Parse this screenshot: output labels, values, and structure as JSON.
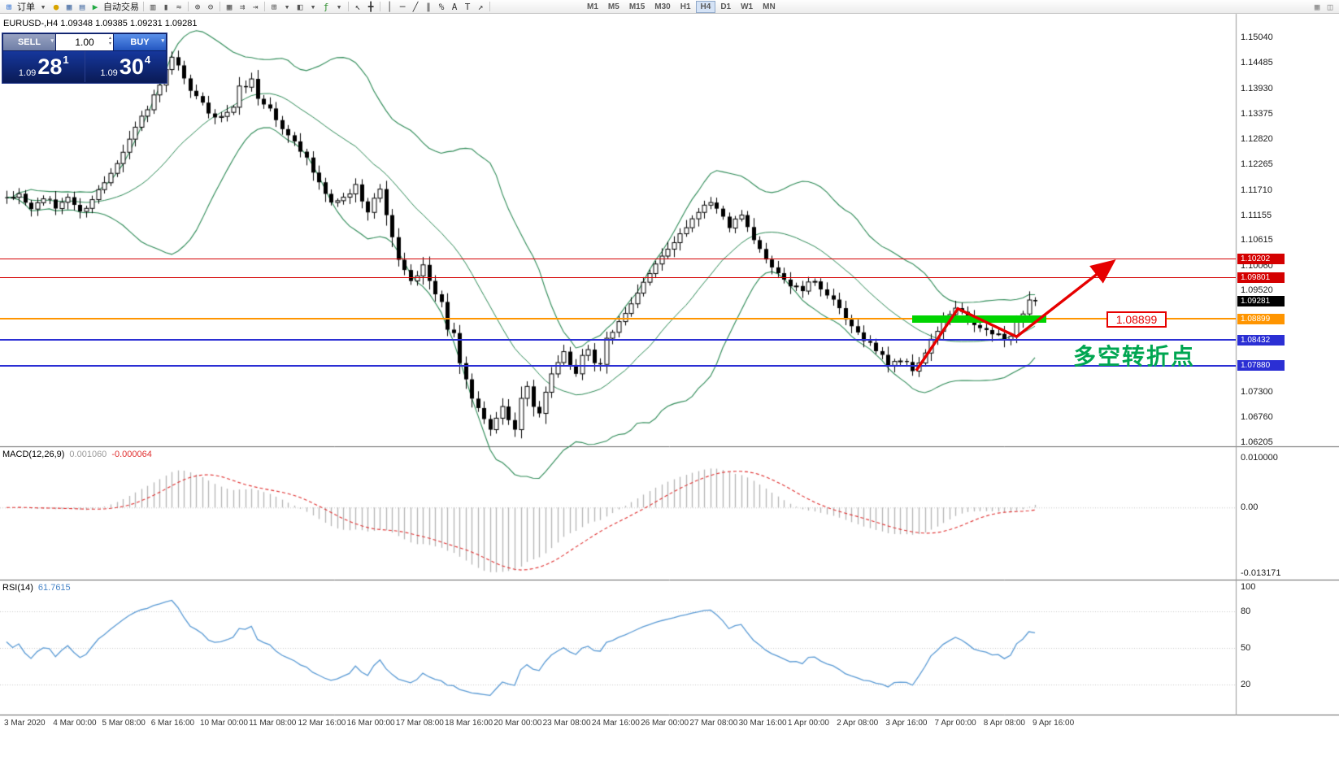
{
  "toolbar": {
    "items": [
      {
        "name": "new-order-icon",
        "glyph": "⊞",
        "color": "#2f6fd1"
      },
      {
        "name": "new-order-label",
        "text": "订单"
      },
      {
        "name": "new-order-dropdown-icon",
        "glyph": "▾",
        "color": "#555555"
      },
      {
        "name": "deposit-icon",
        "glyph": "●",
        "color": "#d8a400"
      },
      {
        "name": "market-watch-icon",
        "glyph": "▦",
        "color": "#4a6fa5"
      },
      {
        "name": "data-window-icon",
        "glyph": "▤",
        "color": "#4a6fa5"
      },
      {
        "name": "autotrade-play-icon",
        "glyph": "▶",
        "color": "#22aa44"
      },
      {
        "name": "autotrade-label",
        "text": "自动交易"
      },
      {
        "sep": true
      },
      {
        "name": "bar-chart-icon",
        "glyph": "▥",
        "color": "#555555"
      },
      {
        "name": "candlestick-chart-icon",
        "glyph": "▮",
        "color": "#555555"
      },
      {
        "name": "line-chart-icon",
        "glyph": "≈",
        "color": "#555555"
      },
      {
        "sep": true
      },
      {
        "name": "zoom-in-icon",
        "glyph": "⊕",
        "color": "#555555"
      },
      {
        "name": "zoom-out-icon",
        "glyph": "⊖",
        "color": "#555555"
      },
      {
        "sep": true
      },
      {
        "name": "tile-windows-icon",
        "glyph": "▦",
        "color": "#555555"
      },
      {
        "name": "auto-scroll-icon",
        "glyph": "⇉",
        "color": "#555555"
      },
      {
        "name": "chart-shift-icon",
        "glyph": "⇥",
        "color": "#555555"
      },
      {
        "sep": true
      },
      {
        "name": "new-chart-icon",
        "glyph": "⊞",
        "color": "#555555"
      },
      {
        "name": "new-chart-dropdown-icon",
        "glyph": "▾",
        "color": "#555555"
      },
      {
        "name": "profiles-icon",
        "glyph": "◧",
        "color": "#555555"
      },
      {
        "name": "profiles-dropdown-icon",
        "glyph": "▾",
        "color": "#555555"
      },
      {
        "name": "indicators-icon",
        "glyph": "ƒ",
        "color": "#2f8f2f"
      },
      {
        "name": "indicators-dropdown-icon",
        "glyph": "▾",
        "color": "#555555"
      },
      {
        "sep": true
      },
      {
        "name": "cursor-icon",
        "glyph": "↖",
        "color": "#333333"
      },
      {
        "name": "crosshair-icon",
        "glyph": "╋",
        "color": "#333333"
      },
      {
        "sep": true
      },
      {
        "name": "vertical-line-icon",
        "glyph": "│",
        "color": "#333333"
      },
      {
        "name": "horizontal-line-icon",
        "glyph": "─",
        "color": "#333333"
      },
      {
        "name": "trendline-icon",
        "glyph": "╱",
        "color": "#333333"
      },
      {
        "name": "channel-icon",
        "glyph": "∥",
        "color": "#333333"
      },
      {
        "name": "fibonacci-icon",
        "glyph": "%",
        "color": "#333333"
      },
      {
        "name": "text-icon",
        "glyph": "A",
        "color": "#333333"
      },
      {
        "name": "label-icon",
        "glyph": "T",
        "color": "#333333"
      },
      {
        "name": "arrows-icon",
        "glyph": "↗",
        "color": "#333333"
      },
      {
        "sep": true
      }
    ],
    "timeframes": [
      "M1",
      "M5",
      "M15",
      "M30",
      "H1",
      "H4",
      "D1",
      "W1",
      "MN"
    ],
    "active_timeframe": "H4",
    "right_icons": [
      {
        "name": "chart-window-icon",
        "glyph": "▦",
        "color": "#888888"
      },
      {
        "name": "expand-icon",
        "glyph": "◫",
        "color": "#888888"
      }
    ]
  },
  "symbol_header": "EURUSD-,H4 1.09348 1.09385 1.09231 1.09281",
  "trade_panel": {
    "sell_label": "SELL",
    "buy_label": "BUY",
    "volume": "1.00",
    "dropdown_glyph": "▾",
    "spinner_up_glyph": "▴",
    "spinner_down_glyph": "▾",
    "sell_price": {
      "small": "1.09",
      "big": "28",
      "sup": "1"
    },
    "buy_price": {
      "small": "1.09",
      "big": "30",
      "sup": "4"
    }
  },
  "price_scale": {
    "max": 1.1504,
    "min": 1.06205,
    "labels": [
      "1.15040",
      "1.14485",
      "1.13930",
      "1.13375",
      "1.12820",
      "1.12265",
      "1.11710",
      "1.11155",
      "1.10615",
      "1.10060",
      "1.09520",
      "1.07300",
      "1.06760",
      "1.06205"
    ]
  },
  "levels": [
    {
      "label": "1.10202",
      "price": 1.10202,
      "color": "#d40000",
      "thickness": 1,
      "type": "resistance-line"
    },
    {
      "label": "1.09801",
      "price": 1.09801,
      "color": "#d40000",
      "thickness": 1,
      "type": "resistance-line"
    },
    {
      "label": "1.08899",
      "price": 1.08899,
      "color": "#ff9500",
      "thickness": 2,
      "type": "pivot-line"
    },
    {
      "label": "1.08432",
      "price": 1.08432,
      "color": "#2b2fd4",
      "thickness": 2,
      "type": "support-line"
    },
    {
      "label": "1.07880",
      "price": 1.0788,
      "color": "#2b2fd4",
      "thickness": 2,
      "type": "support-line"
    }
  ],
  "current_price": {
    "label": "1.09281",
    "value": 1.09281,
    "badge_color": "#000000"
  },
  "annotations": {
    "price_callout": "1.08899",
    "callout_color": "#e60000",
    "turning_point_text": "多空转折点",
    "text_color": "#00a651",
    "arrow_color": "#e60000",
    "arrow_points": [
      [
        148.6,
        1.0777
      ],
      [
        155.4,
        1.0912
      ],
      [
        165.0,
        1.0851
      ],
      [
        180.5,
        1.1012
      ]
    ],
    "green_zone": {
      "price": 1.08899,
      "start_index": 148.0,
      "end_index": 169.8,
      "color": "#00d400"
    }
  },
  "macd": {
    "name": "MACD(12,26,9)",
    "value": "0.001060",
    "signal_value": "-0.000064",
    "value_color": "#9a9a9a",
    "signal_color": "#e03030",
    "scale": [
      "0.010000",
      "0.00",
      "-0.013171"
    ],
    "max": 0.01,
    "min": -0.013171,
    "fast": 12,
    "slow": 26,
    "signal_period": 9
  },
  "rsi": {
    "name": "RSI(14)",
    "value": "61.7615",
    "value_color": "#4a86c8",
    "period": 14,
    "scale": [
      "100",
      "80",
      "50",
      "20"
    ],
    "levels": [
      80,
      50,
      20
    ],
    "max": 100,
    "min": 0
  },
  "time_axis": [
    "3 Mar 2020",
    "4 Mar 00:00",
    "5 Mar 08:00",
    "6 Mar 16:00",
    "10 Mar 00:00",
    "11 Mar 08:00",
    "12 Mar 16:00",
    "16 Mar 00:00",
    "17 Mar 08:00",
    "18 Mar 16:00",
    "20 Mar 00:00",
    "23 Mar 08:00",
    "24 Mar 16:00",
    "26 Mar 00:00",
    "27 Mar 08:00",
    "30 Mar 16:00",
    "1 Apr 00:00",
    "2 Apr 08:00",
    "3 Apr 16:00",
    "7 Apr 00:00",
    "8 Apr 08:00",
    "9 Apr 16:00"
  ],
  "chart_data": {
    "type": "candlestick",
    "symbol": "EURUSD-",
    "timeframe": "H4",
    "current_ohlc": {
      "open": 1.09348,
      "high": 1.09385,
      "low": 1.09231,
      "close": 1.09281
    },
    "candle_count": 169,
    "price_axis": {
      "max": 1.1504,
      "min": 1.06205
    },
    "bollinger": {
      "period": 20,
      "deviation": 2
    },
    "colors": {
      "bull": "#ffffff",
      "bear": "#000000",
      "outline": "#000000",
      "bands": "#2e8b57",
      "histogram": "#b4b4b4",
      "signal": "#e03030",
      "rsi": "#5b9bd5",
      "grid_dotted": "#c8c8c8"
    },
    "close_anchors": [
      [
        0,
        1.1148
      ],
      [
        2,
        1.1162
      ],
      [
        4,
        1.1128
      ],
      [
        6,
        1.1155
      ],
      [
        8,
        1.1132
      ],
      [
        10,
        1.1158
      ],
      [
        12,
        1.112
      ],
      [
        14,
        1.1152
      ],
      [
        16,
        1.1188
      ],
      [
        18,
        1.1235
      ],
      [
        20,
        1.1282
      ],
      [
        22,
        1.133
      ],
      [
        24,
        1.1372
      ],
      [
        26,
        1.1428
      ],
      [
        27,
        1.1456
      ],
      [
        28,
        1.1438
      ],
      [
        29,
        1.1408
      ],
      [
        31,
        1.1372
      ],
      [
        33,
        1.1342
      ],
      [
        35,
        1.1328
      ],
      [
        37,
        1.1355
      ],
      [
        38,
        1.1392
      ],
      [
        40,
        1.141
      ],
      [
        41,
        1.1372
      ],
      [
        43,
        1.1348
      ],
      [
        45,
        1.1302
      ],
      [
        47,
        1.1282
      ],
      [
        49,
        1.1238
      ],
      [
        51,
        1.1182
      ],
      [
        53,
        1.114
      ],
      [
        55,
        1.1152
      ],
      [
        57,
        1.1178
      ],
      [
        59,
        1.1128
      ],
      [
        60,
        1.1154
      ],
      [
        61,
        1.1168
      ],
      [
        62,
        1.1122
      ],
      [
        63,
        1.1062
      ],
      [
        64,
        1.1022
      ],
      [
        65,
        1.0992
      ],
      [
        66,
        1.0968
      ],
      [
        67,
        1.0982
      ],
      [
        68,
        1.1002
      ],
      [
        69,
        1.0978
      ],
      [
        70,
        1.0942
      ],
      [
        71,
        1.0922
      ],
      [
        72,
        1.0872
      ],
      [
        73,
        1.0852
      ],
      [
        74,
        1.0792
      ],
      [
        75,
        1.0758
      ],
      [
        76,
        1.0722
      ],
      [
        77,
        1.0698
      ],
      [
        78,
        1.0668
      ],
      [
        79,
        1.0652
      ],
      [
        80,
        1.0672
      ],
      [
        81,
        1.0692
      ],
      [
        82,
        1.0662
      ],
      [
        83,
        1.0648
      ],
      [
        84,
        1.0712
      ],
      [
        85,
        1.0736
      ],
      [
        86,
        1.0702
      ],
      [
        87,
        1.0682
      ],
      [
        88,
        1.0732
      ],
      [
        89,
        1.0768
      ],
      [
        90,
        1.0798
      ],
      [
        91,
        1.0812
      ],
      [
        92,
        1.0782
      ],
      [
        93,
        1.0772
      ],
      [
        94,
        1.0812
      ],
      [
        95,
        1.0826
      ],
      [
        96,
        1.0795
      ],
      [
        97,
        1.0785
      ],
      [
        98,
        1.0842
      ],
      [
        99,
        1.0858
      ],
      [
        100,
        1.0882
      ],
      [
        102,
        1.0928
      ],
      [
        104,
        1.0968
      ],
      [
        106,
        1.1004
      ],
      [
        108,
        1.1042
      ],
      [
        110,
        1.1078
      ],
      [
        112,
        1.1108
      ],
      [
        114,
        1.1142
      ],
      [
        115,
        1.1148
      ],
      [
        116,
        1.1128
      ],
      [
        118,
        1.1092
      ],
      [
        120,
        1.1112
      ],
      [
        122,
        1.1058
      ],
      [
        124,
        1.1022
      ],
      [
        126,
        1.0992
      ],
      [
        128,
        1.0962
      ],
      [
        130,
        1.0952
      ],
      [
        132,
        1.0975
      ],
      [
        134,
        1.0942
      ],
      [
        136,
        1.0908
      ],
      [
        138,
        1.0868
      ],
      [
        140,
        1.0848
      ],
      [
        142,
        1.0822
      ],
      [
        144,
        1.0792
      ],
      [
        146,
        1.0802
      ],
      [
        148,
        1.0778
      ],
      [
        150,
        1.0815
      ],
      [
        152,
        1.0865
      ],
      [
        154,
        1.0898
      ],
      [
        155,
        1.0912
      ],
      [
        157,
        1.0888
      ],
      [
        159,
        1.0868
      ],
      [
        161,
        1.0858
      ],
      [
        163,
        1.0844
      ],
      [
        164,
        1.0858
      ],
      [
        166,
        1.0905
      ],
      [
        167,
        1.0932
      ],
      [
        168,
        1.0928
      ]
    ]
  }
}
